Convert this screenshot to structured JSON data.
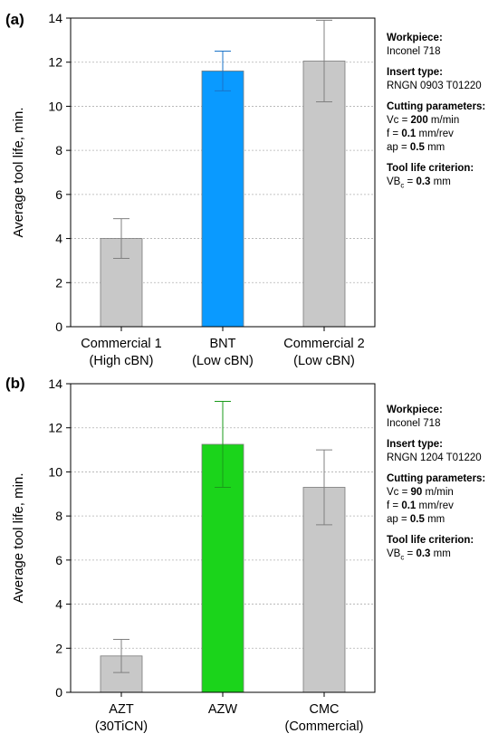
{
  "panels": [
    {
      "label": "(a)",
      "info": {
        "workpiece_header": "Workpiece:",
        "workpiece": "Inconel 718",
        "insert_header": "Insert type:",
        "insert": "RNGN 0903 T01220",
        "cutting_header": "Cutting parameters:",
        "vc_label": "Vc = ",
        "vc_value": "200",
        "vc_unit": " m/min",
        "f_label": "f = ",
        "f_value": "0.1",
        "f_unit": " mm/rev",
        "ap_label": "ap = ",
        "ap_value": "0.5",
        "ap_unit": " mm",
        "criterion_header": "Tool life criterion:",
        "vb_label": "VB",
        "vb_sub": "c",
        "vb_eq": " = ",
        "vb_value": "0.3",
        "vb_unit": " mm"
      }
    },
    {
      "label": "(b)",
      "info": {
        "workpiece_header": "Workpiece:",
        "workpiece": "Inconel 718",
        "insert_header": "Insert type:",
        "insert": "RNGN 1204 T01220",
        "cutting_header": "Cutting parameters:",
        "vc_label": "Vc = ",
        "vc_value": "90",
        "vc_unit": " m/min",
        "f_label": "f = ",
        "f_value": "0.1",
        "f_unit": " mm/rev",
        "ap_label": "ap = ",
        "ap_value": "0.5",
        "ap_unit": " mm",
        "criterion_header": "Tool life criterion:",
        "vb_label": "VB",
        "vb_sub": "c",
        "vb_eq": " = ",
        "vb_value": "0.3",
        "vb_unit": " mm"
      }
    }
  ],
  "chart_data": [
    {
      "type": "bar",
      "ylabel": "Average tool life, min.",
      "xlabel": "",
      "ylim": [
        0,
        14
      ],
      "yticks": [
        0,
        2,
        4,
        6,
        8,
        10,
        12,
        14
      ],
      "grid": true,
      "categories": [
        [
          "Commercial 1",
          "(High cBN)"
        ],
        [
          "BNT",
          "(Low cBN)"
        ],
        [
          "Commercial 2",
          "(Low cBN)"
        ]
      ],
      "values": [
        4.0,
        11.6,
        12.05
      ],
      "error": [
        0.9,
        0.9,
        1.85
      ],
      "colors": [
        "#c8c8c8",
        "#0a9aff",
        "#c8c8c8"
      ],
      "error_colors": [
        "#808080",
        "#1a73c8",
        "#808080"
      ]
    },
    {
      "type": "bar",
      "ylabel": "Average tool life, min.",
      "xlabel": "",
      "ylim": [
        0,
        14
      ],
      "yticks": [
        0,
        2,
        4,
        6,
        8,
        10,
        12,
        14
      ],
      "grid": true,
      "categories": [
        [
          "AZT",
          "(30TiCN)"
        ],
        [
          "AZW",
          ""
        ],
        [
          "CMC",
          "(Commercial)"
        ]
      ],
      "values": [
        1.65,
        11.25,
        9.3
      ],
      "error": [
        0.75,
        1.95,
        1.7
      ],
      "colors": [
        "#c8c8c8",
        "#1bd41b",
        "#c8c8c8"
      ],
      "error_colors": [
        "#808080",
        "#1a9a1a",
        "#808080"
      ]
    }
  ]
}
